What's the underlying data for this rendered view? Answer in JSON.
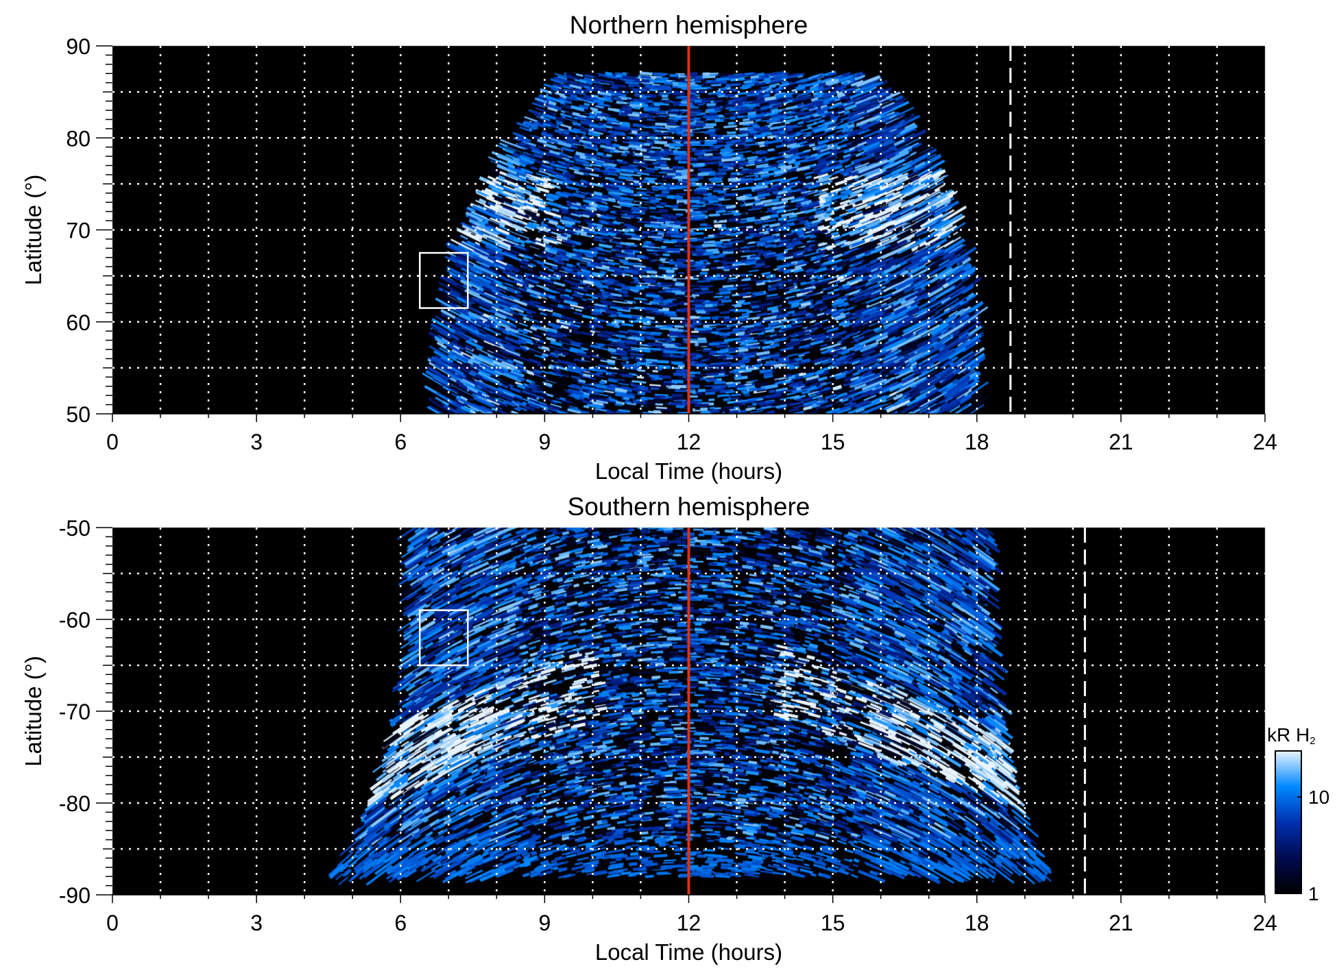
{
  "chart_data": [
    {
      "type": "heatmap",
      "title": "Northern hemisphere",
      "xlabel": "Local Time (hours)",
      "ylabel": "Latitude (°)",
      "xlim": [
        0,
        24
      ],
      "ylim": [
        50,
        90
      ],
      "xticks": [
        "0",
        "3",
        "6",
        "9",
        "12",
        "15",
        "18",
        "21",
        "24"
      ],
      "yticks": [
        "50",
        "60",
        "70",
        "80",
        "90"
      ],
      "grid": true,
      "annotations": {
        "noon_line_lt": 12,
        "noon_line_color": "#e03010",
        "terminator_dashed_line_lt": 18.7,
        "box": {
          "lt": [
            6.4,
            7.4
          ],
          "lat": [
            61.5,
            67.5
          ]
        }
      },
      "emission_extent": {
        "lt_at_lat50": [
          6.7,
          18.0
        ],
        "lt_at_lat86": [
          9.0,
          16.0
        ],
        "max_lat": 87
      }
    },
    {
      "type": "heatmap",
      "title": "Southern hemisphere",
      "xlabel": "Local Time (hours)",
      "ylabel": "Latitude (°)",
      "xlim": [
        0,
        24
      ],
      "ylim": [
        -90,
        -50
      ],
      "xticks": [
        "0",
        "3",
        "6",
        "9",
        "12",
        "15",
        "18",
        "21",
        "24"
      ],
      "yticks": [
        "-90",
        "-80",
        "-70",
        "-60",
        "-50"
      ],
      "grid": true,
      "annotations": {
        "noon_line_lt": 12,
        "noon_line_color": "#e03010",
        "terminator_dashed_line_lt": 20.25,
        "box": {
          "lt": [
            6.4,
            7.4
          ],
          "lat": [
            -65,
            -59
          ]
        }
      },
      "emission_extent": {
        "lt_at_lat_minus50": [
          6.2,
          18.3
        ],
        "lt_at_lat_minus88": [
          4.5,
          19.5
        ]
      }
    }
  ],
  "colorbar": {
    "label": "kR H",
    "label_sub": "2",
    "scale": "log",
    "range": [
      1,
      30
    ],
    "ticks": [
      "1",
      "10"
    ],
    "colors": [
      "#000000",
      "#000a50",
      "#0030b0",
      "#0088ff",
      "#e8f4ff"
    ]
  }
}
